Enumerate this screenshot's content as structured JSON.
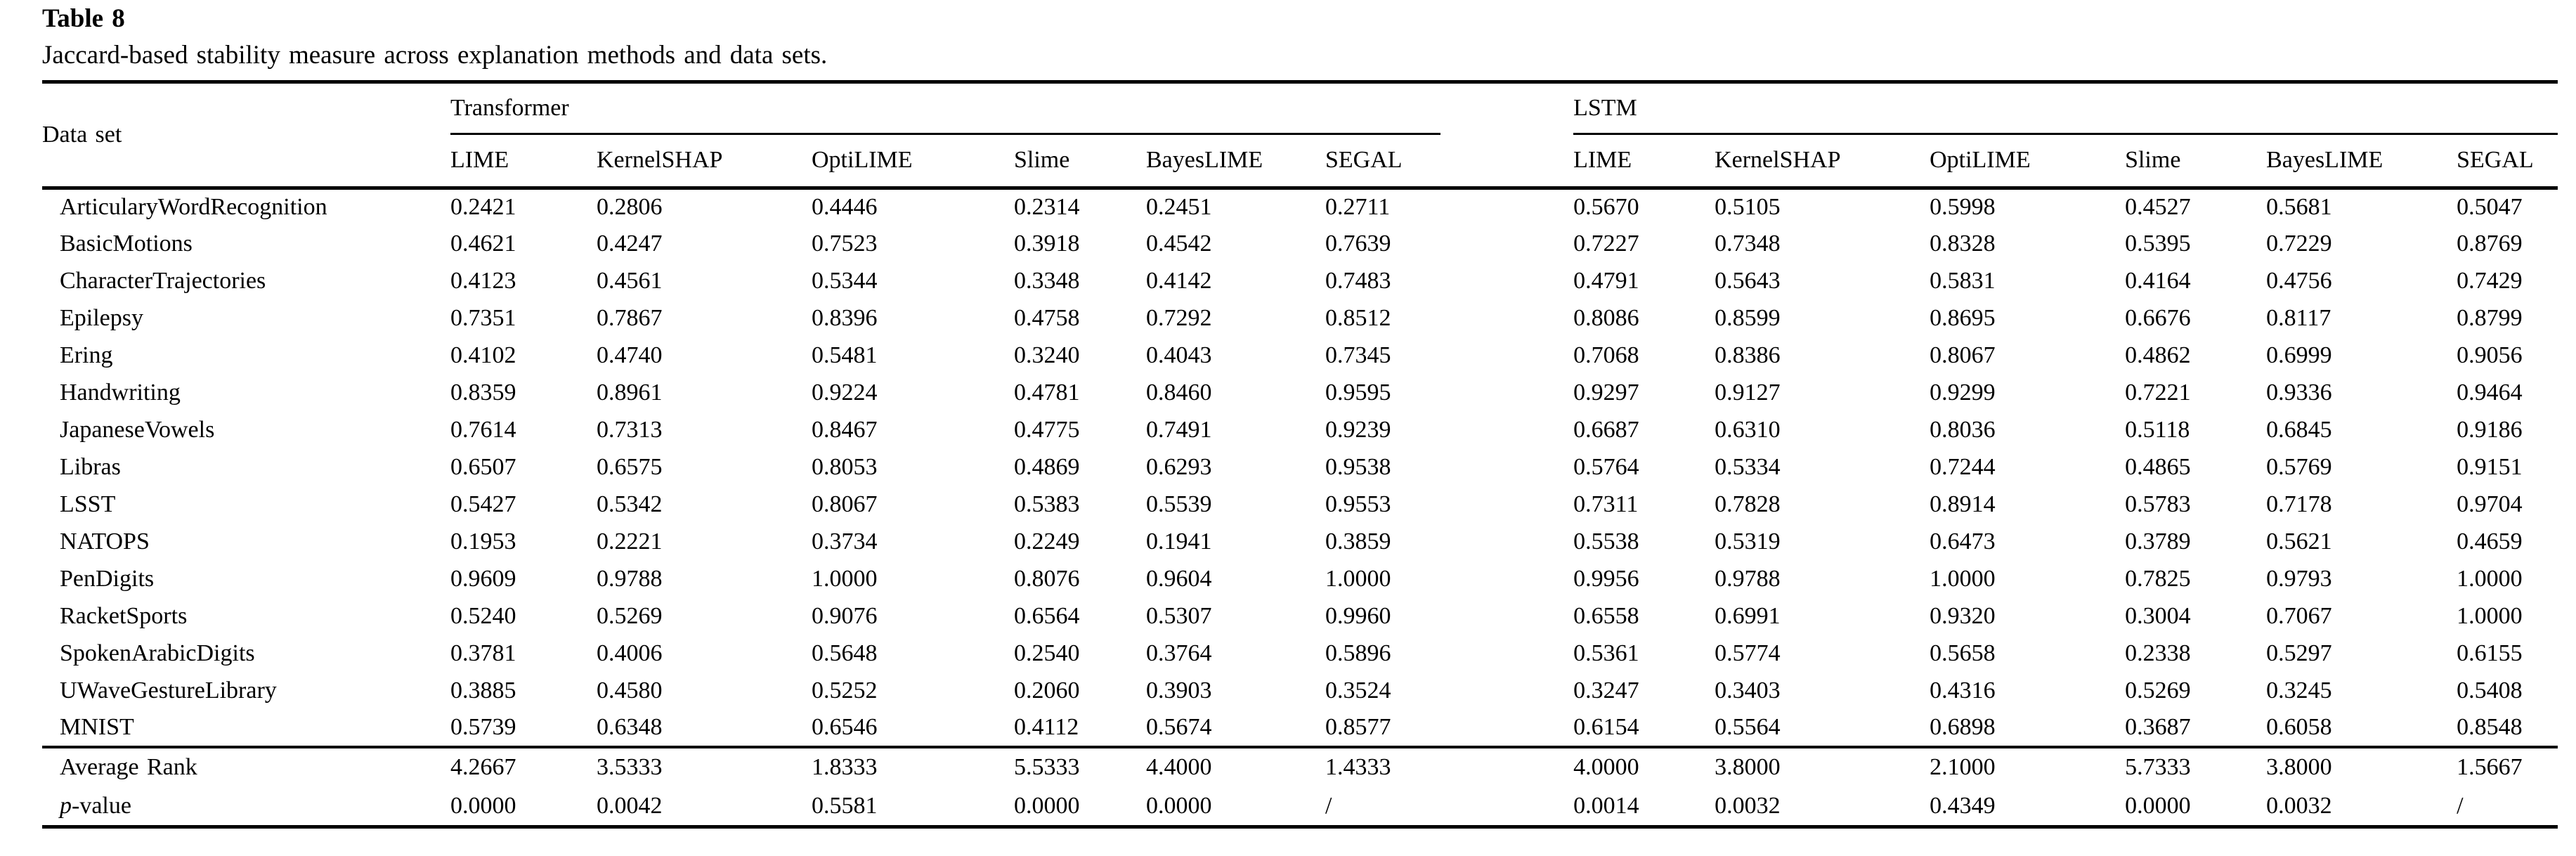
{
  "header": {
    "table_label": "Table 8",
    "caption": "Jaccard-based stability measure across explanation methods and data sets."
  },
  "colors": {
    "text": "#000000",
    "background": "#ffffff",
    "rule": "#000000"
  },
  "table": {
    "dataset_header": "Data set",
    "groups": [
      "Transformer",
      "LSTM"
    ],
    "methods": [
      "LIME",
      "KernelSHAP",
      "OptiLIME",
      "Slime",
      "BayesLIME",
      "SEGAL"
    ],
    "rows": [
      {
        "dataset": "ArticularyWordRecognition",
        "transformer": [
          "0.2421",
          "0.2806",
          "0.4446",
          "0.2314",
          "0.2451",
          "0.2711"
        ],
        "transformer_bold": [
          2
        ],
        "lstm": [
          "0.5670",
          "0.5105",
          "0.5998",
          "0.4527",
          "0.5681",
          "0.5047"
        ],
        "lstm_bold": [
          2
        ]
      },
      {
        "dataset": "BasicMotions",
        "transformer": [
          "0.4621",
          "0.4247",
          "0.7523",
          "0.3918",
          "0.4542",
          "0.7639"
        ],
        "transformer_bold": [
          5
        ],
        "lstm": [
          "0.7227",
          "0.7348",
          "0.8328",
          "0.5395",
          "0.7229",
          "0.8769"
        ],
        "lstm_bold": [
          5
        ]
      },
      {
        "dataset": "CharacterTrajectories",
        "transformer": [
          "0.4123",
          "0.4561",
          "0.5344",
          "0.3348",
          "0.4142",
          "0.7483"
        ],
        "transformer_bold": [
          5
        ],
        "lstm": [
          "0.4791",
          "0.5643",
          "0.5831",
          "0.4164",
          "0.4756",
          "0.7429"
        ],
        "lstm_bold": [
          5
        ]
      },
      {
        "dataset": "Epilepsy",
        "transformer": [
          "0.7351",
          "0.7867",
          "0.8396",
          "0.4758",
          "0.7292",
          "0.8512"
        ],
        "transformer_bold": [
          5
        ],
        "lstm": [
          "0.8086",
          "0.8599",
          "0.8695",
          "0.6676",
          "0.8117",
          "0.8799"
        ],
        "lstm_bold": [
          5
        ]
      },
      {
        "dataset": "Ering",
        "transformer": [
          "0.4102",
          "0.4740",
          "0.5481",
          "0.3240",
          "0.4043",
          "0.7345"
        ],
        "transformer_bold": [
          5
        ],
        "lstm": [
          "0.7068",
          "0.8386",
          "0.8067",
          "0.4862",
          "0.6999",
          "0.9056"
        ],
        "lstm_bold": [
          5
        ]
      },
      {
        "dataset": "Handwriting",
        "transformer": [
          "0.8359",
          "0.8961",
          "0.9224",
          "0.4781",
          "0.8460",
          "0.9595"
        ],
        "transformer_bold": [
          5
        ],
        "lstm": [
          "0.9297",
          "0.9127",
          "0.9299",
          "0.7221",
          "0.9336",
          "0.9464"
        ],
        "lstm_bold": [
          5
        ]
      },
      {
        "dataset": "JapaneseVowels",
        "transformer": [
          "0.7614",
          "0.7313",
          "0.8467",
          "0.4775",
          "0.7491",
          "0.9239"
        ],
        "transformer_bold": [
          5
        ],
        "lstm": [
          "0.6687",
          "0.6310",
          "0.8036",
          "0.5118",
          "0.6845",
          "0.9186"
        ],
        "lstm_bold": [
          5
        ]
      },
      {
        "dataset": "Libras",
        "transformer": [
          "0.6507",
          "0.6575",
          "0.8053",
          "0.4869",
          "0.6293",
          "0.9538"
        ],
        "transformer_bold": [
          5
        ],
        "lstm": [
          "0.5764",
          "0.5334",
          "0.7244",
          "0.4865",
          "0.5769",
          "0.9151"
        ],
        "lstm_bold": [
          5
        ]
      },
      {
        "dataset": "LSST",
        "transformer": [
          "0.5427",
          "0.5342",
          "0.8067",
          "0.5383",
          "0.5539",
          "0.9553"
        ],
        "transformer_bold": [
          5
        ],
        "lstm": [
          "0.7311",
          "0.7828",
          "0.8914",
          "0.5783",
          "0.7178",
          "0.9704"
        ],
        "lstm_bold": [
          5
        ]
      },
      {
        "dataset": "NATOPS",
        "transformer": [
          "0.1953",
          "0.2221",
          "0.3734",
          "0.2249",
          "0.1941",
          "0.3859"
        ],
        "transformer_bold": [
          5
        ],
        "lstm": [
          "0.5538",
          "0.5319",
          "0.6473",
          "0.3789",
          "0.5621",
          "0.4659"
        ],
        "lstm_bold": [
          2
        ]
      },
      {
        "dataset": "PenDigits",
        "transformer": [
          "0.9609",
          "0.9788",
          "1.0000",
          "0.8076",
          "0.9604",
          "1.0000"
        ],
        "transformer_bold": [
          2,
          5
        ],
        "lstm": [
          "0.9956",
          "0.9788",
          "1.0000",
          "0.7825",
          "0.9793",
          "1.0000"
        ],
        "lstm_bold": [
          2,
          5
        ]
      },
      {
        "dataset": "RacketSports",
        "transformer": [
          "0.5240",
          "0.5269",
          "0.9076",
          "0.6564",
          "0.5307",
          "0.9960"
        ],
        "transformer_bold": [
          5
        ],
        "lstm": [
          "0.6558",
          "0.6991",
          "0.9320",
          "0.3004",
          "0.7067",
          "1.0000"
        ],
        "lstm_bold": [
          5
        ]
      },
      {
        "dataset": "SpokenArabicDigits",
        "transformer": [
          "0.3781",
          "0.4006",
          "0.5648",
          "0.2540",
          "0.3764",
          "0.5896"
        ],
        "transformer_bold": [
          5
        ],
        "lstm": [
          "0.5361",
          "0.5774",
          "0.5658",
          "0.2338",
          "0.5297",
          "0.6155"
        ],
        "lstm_bold": [
          5
        ]
      },
      {
        "dataset": "UWaveGestureLibrary",
        "transformer": [
          "0.3885",
          "0.4580",
          "0.5252",
          "0.2060",
          "0.3903",
          "0.3524"
        ],
        "transformer_bold": [
          2
        ],
        "lstm": [
          "0.3247",
          "0.3403",
          "0.4316",
          "0.5269",
          "0.3245",
          "0.5408"
        ],
        "lstm_bold": [
          5
        ]
      },
      {
        "dataset": "MNIST",
        "transformer": [
          "0.5739",
          "0.6348",
          "0.6546",
          "0.4112",
          "0.5674",
          "0.8577"
        ],
        "transformer_bold": [
          5
        ],
        "lstm": [
          "0.6154",
          "0.5564",
          "0.6898",
          "0.3687",
          "0.6058",
          "0.8548"
        ],
        "lstm_bold": [
          5
        ]
      }
    ],
    "footer_rows": [
      {
        "label_parts": [
          {
            "text": "Average Rank",
            "italic": false
          }
        ],
        "transformer": [
          "4.2667",
          "3.5333",
          "1.8333",
          "5.5333",
          "4.4000",
          "1.4333"
        ],
        "transformer_bold": [
          5
        ],
        "lstm": [
          "4.0000",
          "3.8000",
          "2.1000",
          "5.7333",
          "3.8000",
          "1.5667"
        ],
        "lstm_bold": [
          5
        ]
      },
      {
        "label_parts": [
          {
            "text": "p",
            "italic": true
          },
          {
            "text": "-value",
            "italic": false
          }
        ],
        "transformer": [
          "0.0000",
          "0.0042",
          "0.5581",
          "0.0000",
          "0.0000",
          "/"
        ],
        "transformer_bold": [],
        "lstm": [
          "0.0014",
          "0.0032",
          "0.4349",
          "0.0000",
          "0.0032",
          "/"
        ],
        "lstm_bold": []
      }
    ]
  }
}
